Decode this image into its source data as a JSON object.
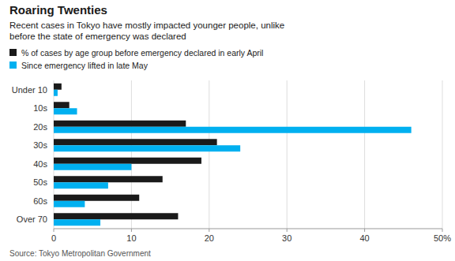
{
  "chart_data": {
    "type": "bar",
    "orientation": "horizontal",
    "title": "Roaring Twenties",
    "subtitle": "Recent cases in Tokyo have mostly impacted younger people, unlike\nbefore the state of emergency was declared",
    "categories": [
      "Under 10",
      "10s",
      "20s",
      "30s",
      "40s",
      "50s",
      "60s",
      "Over 70"
    ],
    "series": [
      {
        "name": "% of cases by age group before emergency declared in early April",
        "color": "#1a1a1a",
        "values": [
          1,
          2,
          17,
          21,
          19,
          14,
          11,
          16
        ]
      },
      {
        "name": "Since emergency lifted in late May",
        "color": "#00b0f0",
        "values": [
          0.5,
          3,
          46,
          24,
          10,
          7,
          4,
          6
        ]
      }
    ],
    "xlim": [
      0,
      50
    ],
    "xticks": [
      0,
      10,
      20,
      30,
      40,
      {
        "value": 50,
        "label": "50%"
      }
    ],
    "grid": true,
    "legend": "upper left",
    "annotations": [
      "Source: Tokyo Metropolitan Government"
    ]
  }
}
